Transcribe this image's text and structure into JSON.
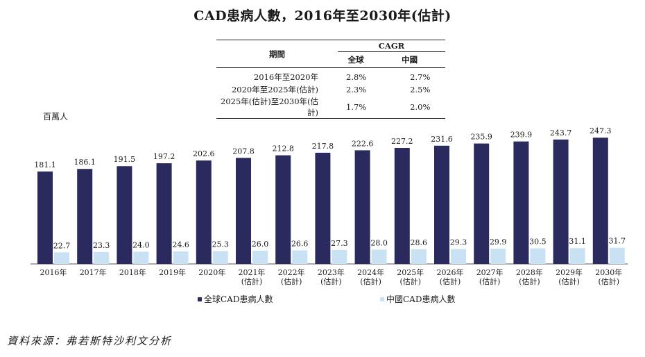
{
  "title": "CAD患病人數，2016年至2030年(估計)",
  "unit_label": "百萬人",
  "source": "資料來源：弗若斯特沙利文分析",
  "cagr_table": {
    "col_period": "期間",
    "col_cagr": "CAGR",
    "col_global": "全球",
    "col_china": "中國",
    "rows": [
      {
        "period": "2016年至2020年",
        "global": "2.8%",
        "china": "2.7%"
      },
      {
        "period": "2020年至2025年(估計)",
        "global": "2.3%",
        "china": "2.5%"
      },
      {
        "period": "2025年(估計)至2030年(估計)",
        "global": "1.7%",
        "china": "2.0%"
      }
    ]
  },
  "legend": {
    "global": "全球CAD患病人數",
    "china": "中國CAD患病人數"
  },
  "colors": {
    "global": "#2b2a5e",
    "china": "#c8e2f4",
    "axis": "#555555"
  },
  "chart_data": {
    "type": "bar",
    "categories": [
      [
        "2016年"
      ],
      [
        "2017年"
      ],
      [
        "2018年"
      ],
      [
        "2019年"
      ],
      [
        "2020年"
      ],
      [
        "2021年",
        "(估計)"
      ],
      [
        "2022年",
        "(估計)"
      ],
      [
        "2023年",
        "(估計)"
      ],
      [
        "2024年",
        "(估計)"
      ],
      [
        "2025年",
        "(估計)"
      ],
      [
        "2026年",
        "(估計)"
      ],
      [
        "2027年",
        "(估計)"
      ],
      [
        "2028年",
        "(估計)"
      ],
      [
        "2029年",
        "(估計)"
      ],
      [
        "2030年",
        "(估計)"
      ]
    ],
    "series": [
      {
        "name": "全球CAD患病人數",
        "values": [
          181.1,
          186.1,
          191.5,
          197.2,
          202.6,
          207.8,
          212.8,
          217.8,
          222.6,
          227.2,
          231.6,
          235.9,
          239.9,
          243.7,
          247.3
        ]
      },
      {
        "name": "中國CAD患病人數",
        "values": [
          22.7,
          23.3,
          24.0,
          24.6,
          25.3,
          26.0,
          26.6,
          27.3,
          28.0,
          28.6,
          29.3,
          29.9,
          30.5,
          31.1,
          31.7
        ]
      }
    ],
    "ylabel": "百萬人",
    "ylim": [
      0,
      250
    ],
    "grid": false,
    "legend_position": "bottom"
  }
}
